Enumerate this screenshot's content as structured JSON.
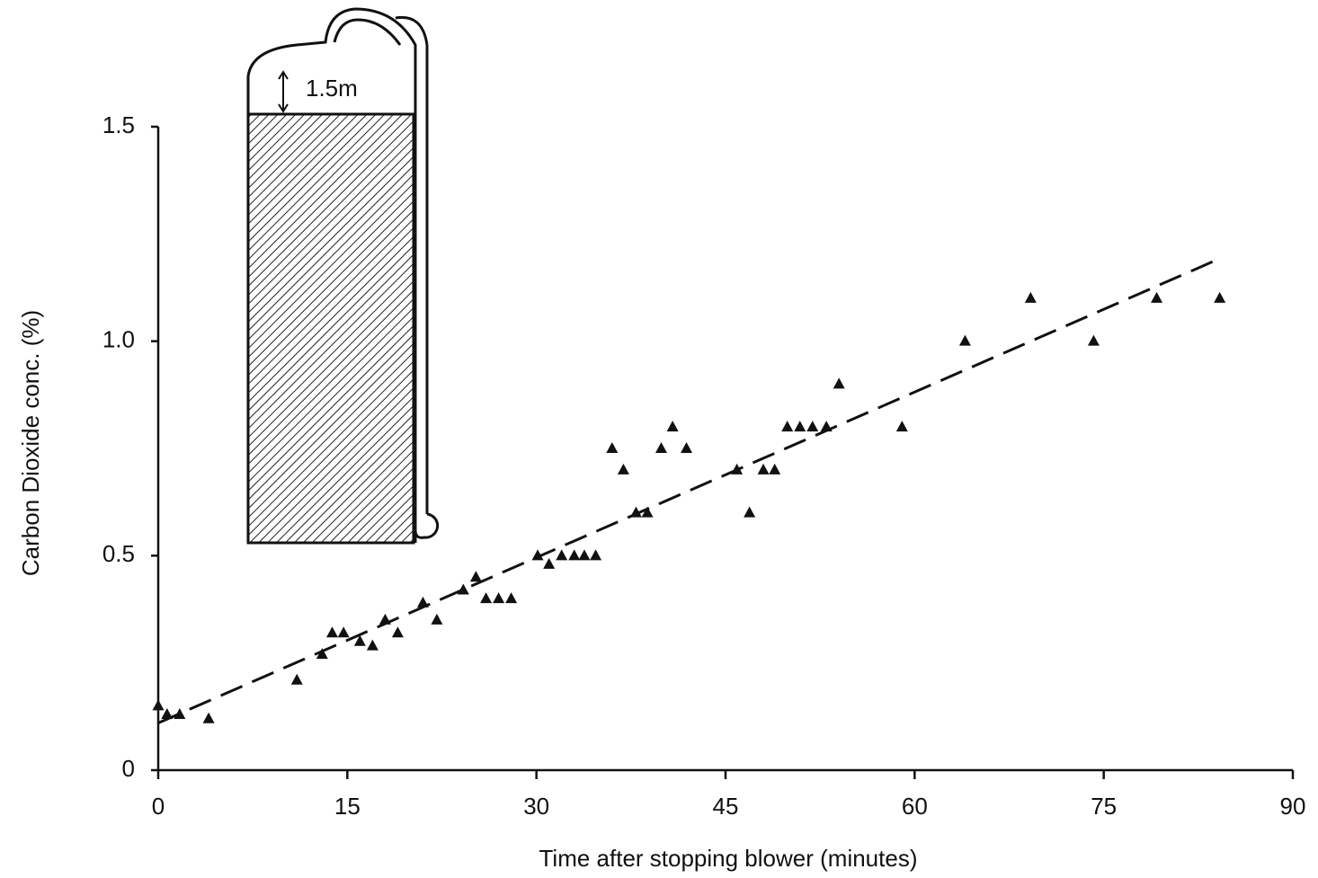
{
  "chart_data": {
    "type": "scatter",
    "x_label": "Time after stopping blower (minutes)",
    "y_label": "Carbon Dioxide conc. (%)",
    "annotation": "1.5m",
    "xlim": [
      0,
      90
    ],
    "ylim": [
      0,
      1.5
    ],
    "xticks": [
      0,
      15,
      30,
      45,
      60,
      75,
      90
    ],
    "yticks": [
      0,
      0.5,
      {
        "value": 1,
        "label": "1.0"
      },
      1.5
    ],
    "color": "#111111",
    "x": [
      0,
      0.7,
      1.7,
      4,
      11,
      13,
      13.8,
      14.7,
      16,
      17,
      18,
      19,
      21,
      22.1,
      24.2,
      25.2,
      26,
      27,
      28,
      30.1,
      31,
      32,
      33,
      33.8,
      34.7,
      36,
      36.9,
      37.9,
      38.8,
      39.9,
      40.8,
      41.9,
      45.9,
      46.9,
      48,
      48.9,
      49.9,
      50.9,
      51.9,
      53,
      54,
      59,
      64,
      69.2,
      74.2,
      79.2,
      84.2
    ],
    "values": [
      0.15,
      0.13,
      0.13,
      0.12,
      0.21,
      0.27,
      0.32,
      0.32,
      0.3,
      0.29,
      0.35,
      0.32,
      0.39,
      0.35,
      0.42,
      0.45,
      0.4,
      0.4,
      0.4,
      0.5,
      0.48,
      0.5,
      0.5,
      0.5,
      0.5,
      0.75,
      0.7,
      0.6,
      0.6,
      0.75,
      0.8,
      0.75,
      0.7,
      0.6,
      0.7,
      0.7,
      0.8,
      0.8,
      0.8,
      0.8,
      0.9,
      0.8,
      1.0,
      1.1,
      1.0,
      1.1,
      1.1
    ],
    "trend": {
      "x": [
        0,
        84
      ],
      "y": [
        0.11,
        1.19
      ]
    }
  }
}
